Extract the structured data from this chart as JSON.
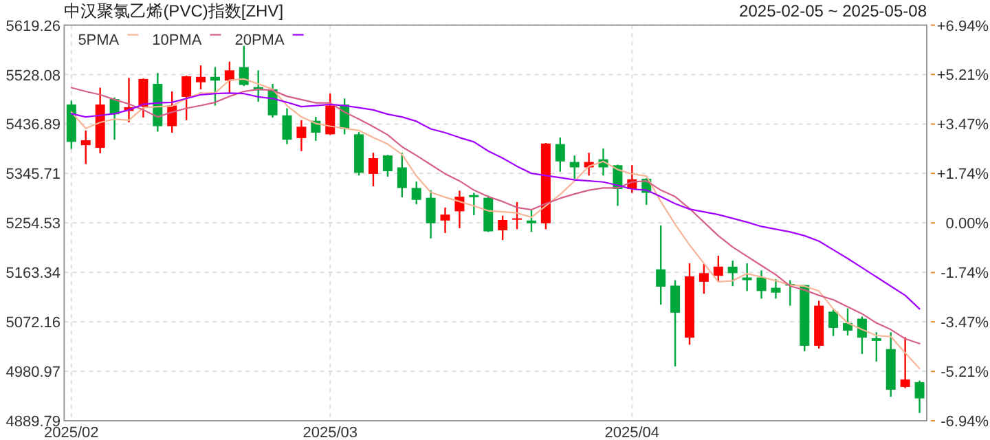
{
  "chart_data": {
    "type": "candlestick",
    "title": "中汉聚氯乙烯(PVC)指数[ZHV]",
    "subtitle": "2025-02-05 ~ 2025-05-08",
    "categories": [
      "2025/02",
      null,
      null,
      null,
      null,
      null,
      null,
      null,
      null,
      null,
      null,
      null,
      null,
      null,
      null,
      null,
      null,
      null,
      "2025/03",
      null,
      null,
      null,
      null,
      null,
      null,
      null,
      null,
      null,
      null,
      null,
      null,
      null,
      null,
      null,
      null,
      null,
      null,
      null,
      null,
      "2025/04",
      null,
      null,
      null,
      null,
      null,
      null,
      null,
      null,
      null,
      null,
      null,
      null,
      null,
      null,
      null,
      null,
      null,
      null,
      null,
      null
    ],
    "ohlc": [
      [
        5473,
        5480,
        5391,
        5404
      ],
      [
        5398,
        5425,
        5363,
        5407
      ],
      [
        5393,
        5504,
        5383,
        5473
      ],
      [
        5483,
        5486,
        5408,
        5455
      ],
      [
        5461,
        5522,
        5440,
        5468
      ],
      [
        5469,
        5521,
        5449,
        5520
      ],
      [
        5511,
        5531,
        5423,
        5433
      ],
      [
        5433,
        5497,
        5421,
        5471
      ],
      [
        5487,
        5526,
        5444,
        5525
      ],
      [
        5514,
        5545,
        5501,
        5524
      ],
      [
        5524,
        5542,
        5471,
        5517
      ],
      [
        5517,
        5552,
        5493,
        5536
      ],
      [
        5542,
        5581,
        5507,
        5509
      ],
      [
        5505,
        5536,
        5478,
        5499
      ],
      [
        5501,
        5511,
        5449,
        5453
      ],
      [
        5453,
        5466,
        5400,
        5408
      ],
      [
        5411,
        5444,
        5387,
        5432
      ],
      [
        5443,
        5450,
        5406,
        5421
      ],
      [
        5418,
        5493,
        5417,
        5471
      ],
      [
        5473,
        5484,
        5418,
        5428
      ],
      [
        5418,
        5422,
        5342,
        5347
      ],
      [
        5345,
        5384,
        5322,
        5374
      ],
      [
        5379,
        5380,
        5340,
        5350
      ],
      [
        5357,
        5384,
        5302,
        5319
      ],
      [
        5319,
        5331,
        5289,
        5297
      ],
      [
        5301,
        5315,
        5226,
        5254
      ],
      [
        5259,
        5283,
        5236,
        5270
      ],
      [
        5276,
        5314,
        5245,
        5303
      ],
      [
        5306,
        5310,
        5269,
        5302
      ],
      [
        5301,
        5305,
        5238,
        5239
      ],
      [
        5241,
        5268,
        5223,
        5260
      ],
      [
        5261,
        5293,
        5243,
        5263
      ],
      [
        5259,
        5280,
        5238,
        5254
      ],
      [
        5254,
        5402,
        5243,
        5401
      ],
      [
        5400,
        5412,
        5349,
        5368
      ],
      [
        5367,
        5379,
        5336,
        5357
      ],
      [
        5357,
        5384,
        5342,
        5367
      ],
      [
        5372,
        5392,
        5342,
        5357
      ],
      [
        5361,
        5362,
        5286,
        5317
      ],
      [
        5317,
        5361,
        5310,
        5335
      ],
      [
        5336,
        5337,
        5288,
        5310
      ],
      [
        5169,
        5250,
        5104,
        5137
      ],
      [
        5139,
        5149,
        4990,
        5089
      ],
      [
        5043,
        5180,
        5030,
        5156
      ],
      [
        5146,
        5179,
        5124,
        5162
      ],
      [
        5157,
        5194,
        5146,
        5174
      ],
      [
        5174,
        5185,
        5138,
        5162
      ],
      [
        5154,
        5180,
        5129,
        5149
      ],
      [
        5154,
        5167,
        5115,
        5129
      ],
      [
        5135,
        5151,
        5115,
        5126
      ],
      [
        5142,
        5149,
        5102,
        5139
      ],
      [
        5140,
        5140,
        5018,
        5028
      ],
      [
        5028,
        5111,
        5023,
        5102
      ],
      [
        5091,
        5095,
        5046,
        5061
      ],
      [
        5070,
        5097,
        5047,
        5056
      ],
      [
        5078,
        5082,
        5013,
        5043
      ],
      [
        5042,
        5053,
        4999,
        5037
      ],
      [
        5022,
        5053,
        4934,
        4947
      ],
      [
        4952,
        5044,
        4950,
        4966
      ],
      [
        4961,
        4964,
        4904,
        4931
      ]
    ],
    "colors": [
      "#00a83c",
      "#ff0000",
      "#ff0000",
      "#00a83c",
      "#ff0000",
      "#ff0000",
      "#00a83c",
      "#ff0000",
      "#ff0000",
      "#ff0000",
      "#00a83c",
      "#ff0000",
      "#00a83c",
      "#00a83c",
      "#00a83c",
      "#00a83c",
      "#ff0000",
      "#00a83c",
      "#ff0000",
      "#00a83c",
      "#00a83c",
      "#ff0000",
      "#00a83c",
      "#00a83c",
      "#00a83c",
      "#00a83c",
      "#ff0000",
      "#ff0000",
      "#00a83c",
      "#00a83c",
      "#ff0000",
      "#ff0000",
      "#00a83c",
      "#ff0000",
      "#00a83c",
      "#00a83c",
      "#ff0000",
      "#00a83c",
      "#00a83c",
      "#ff0000",
      "#00a83c",
      "#00a83c",
      "#00a83c",
      "#ff0000",
      "#ff0000",
      "#ff0000",
      "#00a83c",
      "#00a83c",
      "#00a83c",
      "#00a83c",
      "#00a83c",
      "#00a83c",
      "#ff0000",
      "#00a83c",
      "#00a83c",
      "#00a83c",
      "#00a83c",
      "#00a83c",
      "#ff0000",
      "#00a83c"
    ],
    "series": [
      {
        "name": "5PMA",
        "type": "line",
        "color": "#f7b595",
        "values": [
          5459,
          5429,
          5440,
          5446,
          5444,
          5467,
          5469,
          5470,
          5484,
          5494,
          5494,
          5518,
          5520,
          5511,
          5501,
          5471,
          5450,
          5438,
          5433,
          5429,
          5425,
          5412,
          5400,
          5381,
          5341,
          5311,
          5302,
          5294,
          5286,
          5277,
          5275,
          5273,
          5265,
          5286,
          5307,
          5332,
          5359,
          5368,
          5353,
          5345,
          5341,
          5294,
          5252,
          5214,
          5180,
          5146,
          5148,
          5161,
          5155,
          5148,
          5140,
          5138,
          5129,
          5096,
          5070,
          5058,
          5047,
          5045,
          5015,
          4986
        ]
      },
      {
        "name": "10PMA",
        "type": "line",
        "color": "#d65f87",
        "values": [
          5504,
          5497,
          5491,
          5482,
          5474,
          5463,
          5450,
          5459,
          5466,
          5471,
          5477,
          5488,
          5497,
          5501,
          5499,
          5488,
          5482,
          5476,
          5476,
          5459,
          5446,
          5432,
          5417,
          5395,
          5379,
          5362,
          5345,
          5332,
          5315,
          5303,
          5294,
          5283,
          5279,
          5290,
          5300,
          5308,
          5315,
          5319,
          5319,
          5330,
          5332,
          5315,
          5303,
          5281,
          5256,
          5231,
          5210,
          5193,
          5176,
          5159,
          5138,
          5131,
          5121,
          5113,
          5100,
          5087,
          5070,
          5058,
          5041,
          5032
        ]
      },
      {
        "name": "20PMA",
        "type": "line",
        "color": "#a100ff",
        "values": [
          5456,
          5450,
          5453,
          5456,
          5463,
          5473,
          5476,
          5477,
          5484,
          5491,
          5493,
          5494,
          5493,
          5487,
          5484,
          5477,
          5469,
          5471,
          5473,
          5471,
          5467,
          5463,
          5455,
          5450,
          5442,
          5428,
          5421,
          5412,
          5404,
          5387,
          5374,
          5359,
          5346,
          5342,
          5338,
          5334,
          5332,
          5330,
          5324,
          5317,
          5315,
          5303,
          5290,
          5280,
          5275,
          5270,
          5263,
          5256,
          5248,
          5243,
          5238,
          5231,
          5221,
          5205,
          5189,
          5172,
          5155,
          5138,
          5121,
          5096
        ]
      }
    ],
    "ylim": [
      4889.79,
      5619.26
    ],
    "yticks": [
      4889.79,
      4980.97,
      5072.16,
      5163.34,
      5254.53,
      5345.71,
      5436.89,
      5528.08,
      5619.26
    ],
    "y2lim": [
      -6.94,
      6.94
    ],
    "y2ticks": [
      {
        "value": 6.94,
        "label": "+6.94%"
      },
      {
        "value": 5.21,
        "label": "+5.21%"
      },
      {
        "value": 3.47,
        "label": "+3.47%"
      },
      {
        "value": 1.74,
        "label": "+1.74%"
      },
      {
        "value": 0,
        "label": "0.00%"
      },
      {
        "value": -1.74,
        "label": "-1.74%"
      },
      {
        "value": -3.47,
        "label": "-3.47%"
      },
      {
        "value": -5.21,
        "label": "-5.21%"
      },
      {
        "value": -6.94,
        "label": "-6.94%"
      }
    ],
    "grid": true,
    "legend": "top left"
  }
}
